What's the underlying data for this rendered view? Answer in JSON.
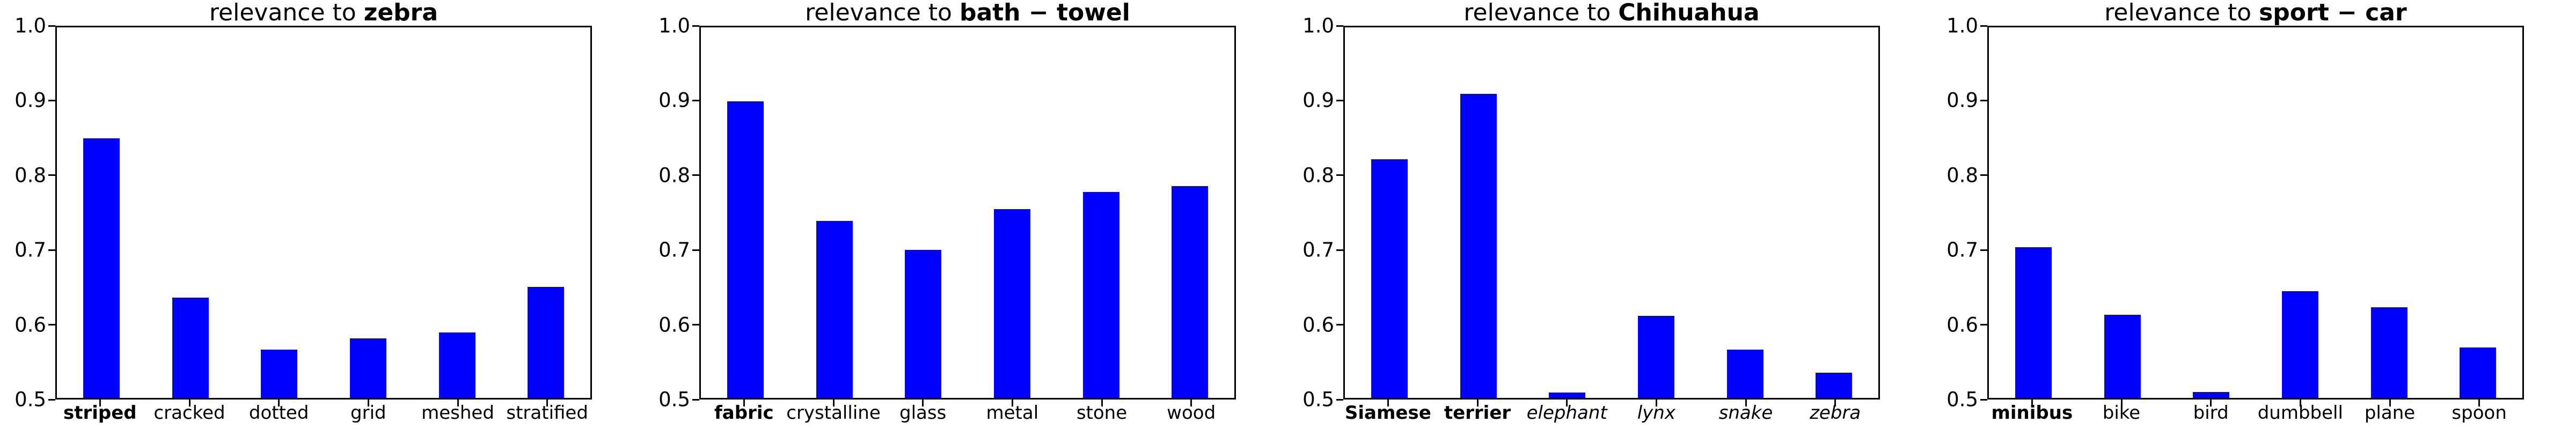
{
  "figure": {
    "background": "#ffffff",
    "bar_color": "#0000ff",
    "axis_color": "#000000",
    "text_color": "#000000"
  },
  "chart_data": [
    {
      "type": "bar",
      "title": "relevance to zebra",
      "title_prefix": "relevance to ",
      "subject": "zebra",
      "categories": [
        "striped",
        "cracked",
        "dotted",
        "grid",
        "meshed",
        "stratified"
      ],
      "category_styles": [
        "bold",
        "normal",
        "normal",
        "normal",
        "normal",
        "normal"
      ],
      "values": [
        0.85,
        0.635,
        0.565,
        0.58,
        0.588,
        0.65
      ],
      "ylim": [
        0.5,
        1.0
      ],
      "yticks": [
        1.0,
        0.9,
        0.8,
        0.7,
        0.6,
        0.5
      ],
      "ytick_labels": [
        "1.0",
        "0.9",
        "0.8",
        "0.7",
        "0.6",
        "0.5"
      ],
      "grid": false,
      "legend": null,
      "xlabel": "",
      "ylabel": ""
    },
    {
      "type": "bar",
      "title": "relevance to bath − towel",
      "title_prefix": "relevance to ",
      "subject": "bath − towel",
      "categories": [
        "fabric",
        "crystalline",
        "glass",
        "metal",
        "stone",
        "wood"
      ],
      "category_styles": [
        "bold",
        "normal",
        "normal",
        "normal",
        "normal",
        "normal"
      ],
      "values": [
        0.9,
        0.739,
        0.7,
        0.755,
        0.778,
        0.786
      ],
      "ylim": [
        0.5,
        1.0
      ],
      "yticks": [
        1.0,
        0.9,
        0.8,
        0.7,
        0.6,
        0.5
      ],
      "ytick_labels": [
        "1.0",
        "0.9",
        "0.8",
        "0.7",
        "0.6",
        "0.5"
      ],
      "grid": false,
      "legend": null,
      "xlabel": "",
      "ylabel": ""
    },
    {
      "type": "bar",
      "title": "relevance to Chihuahua",
      "title_prefix": "relevance to ",
      "subject": "Chihuahua",
      "categories": [
        "Siamese",
        "terrier",
        "elephant",
        "lynx",
        "snake",
        "zebra"
      ],
      "category_styles": [
        "bold",
        "bold",
        "italic",
        "italic",
        "italic",
        "italic"
      ],
      "values": [
        0.822,
        0.91,
        0.507,
        0.611,
        0.565,
        0.534
      ],
      "ylim": [
        0.5,
        1.0
      ],
      "yticks": [
        1.0,
        0.9,
        0.8,
        0.7,
        0.6,
        0.5
      ],
      "ytick_labels": [
        "1.0",
        "0.9",
        "0.8",
        "0.7",
        "0.6",
        "0.5"
      ],
      "grid": false,
      "legend": null,
      "xlabel": "",
      "ylabel": ""
    },
    {
      "type": "bar",
      "title": "relevance to sport − car",
      "title_prefix": "relevance to ",
      "subject": "sport − car",
      "categories": [
        "minibus",
        "bike",
        "bird",
        "dumbbell",
        "plane",
        "spoon"
      ],
      "category_styles": [
        "bold",
        "normal",
        "normal",
        "normal",
        "normal",
        "normal"
      ],
      "values": [
        0.703,
        0.612,
        0.508,
        0.644,
        0.622,
        0.568
      ],
      "ylim": [
        0.5,
        1.0
      ],
      "yticks": [
        1.0,
        0.9,
        0.8,
        0.7,
        0.6,
        0.5
      ],
      "ytick_labels": [
        "1.0",
        "0.9",
        "0.8",
        "0.7",
        "0.6",
        "0.5"
      ],
      "grid": false,
      "legend": null,
      "xlabel": "",
      "ylabel": ""
    }
  ]
}
